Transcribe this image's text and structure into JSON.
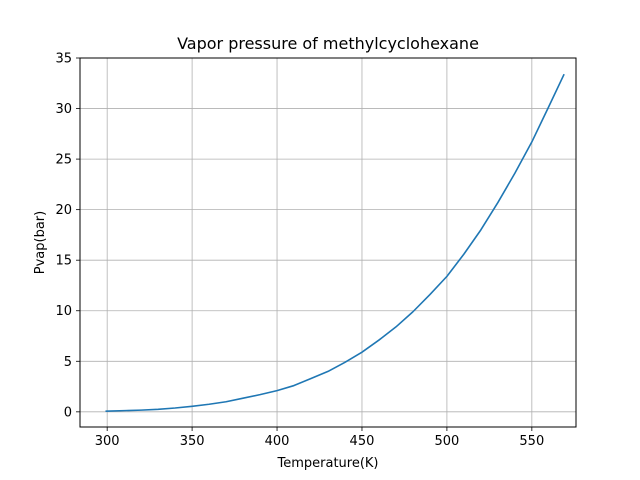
{
  "chart_data": {
    "type": "line",
    "title": "Vapor pressure of methylcyclohexane",
    "xlabel": "Temperature(K)",
    "ylabel": "Pvap(bar)",
    "xlim": [
      284,
      576
    ],
    "ylim": [
      -1.5,
      35
    ],
    "xticks": [
      300,
      350,
      400,
      450,
      500,
      550
    ],
    "yticks": [
      0,
      5,
      10,
      15,
      20,
      25,
      30,
      35
    ],
    "grid": true,
    "series": [
      {
        "color": "#1f77b4",
        "x": [
          299,
          310,
          320,
          330,
          340,
          350,
          360,
          370,
          380,
          390,
          400,
          410,
          420,
          430,
          440,
          450,
          460,
          470,
          480,
          490,
          500,
          510,
          520,
          530,
          540,
          550,
          560,
          569
        ],
        "y": [
          0.06,
          0.12,
          0.17,
          0.25,
          0.38,
          0.55,
          0.75,
          1.0,
          1.35,
          1.7,
          2.1,
          2.6,
          3.3,
          4.0,
          4.9,
          5.9,
          7.1,
          8.4,
          9.9,
          11.6,
          13.4,
          15.6,
          18.0,
          20.7,
          23.6,
          26.7,
          30.2,
          33.4
        ]
      }
    ]
  }
}
